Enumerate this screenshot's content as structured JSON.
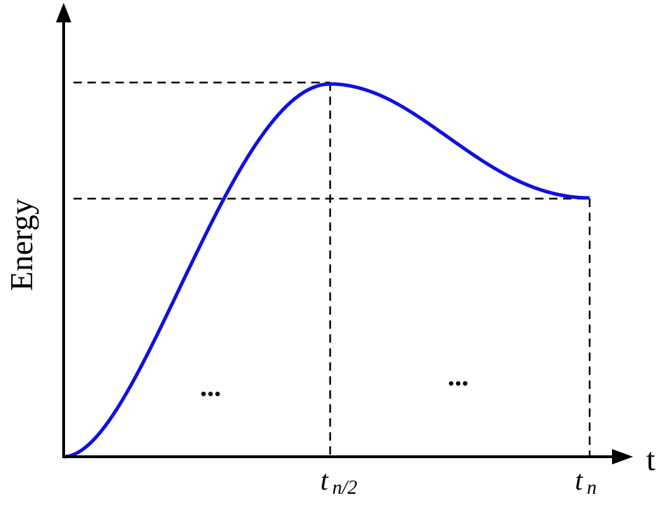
{
  "y_axis": {
    "label": "Energy"
  },
  "x_axis": {
    "label": "t",
    "markers": [
      {
        "base": "t",
        "subscript": "n/2"
      },
      {
        "base": "t",
        "subscript": "n"
      }
    ]
  },
  "annotations": [
    "...",
    "..."
  ]
}
